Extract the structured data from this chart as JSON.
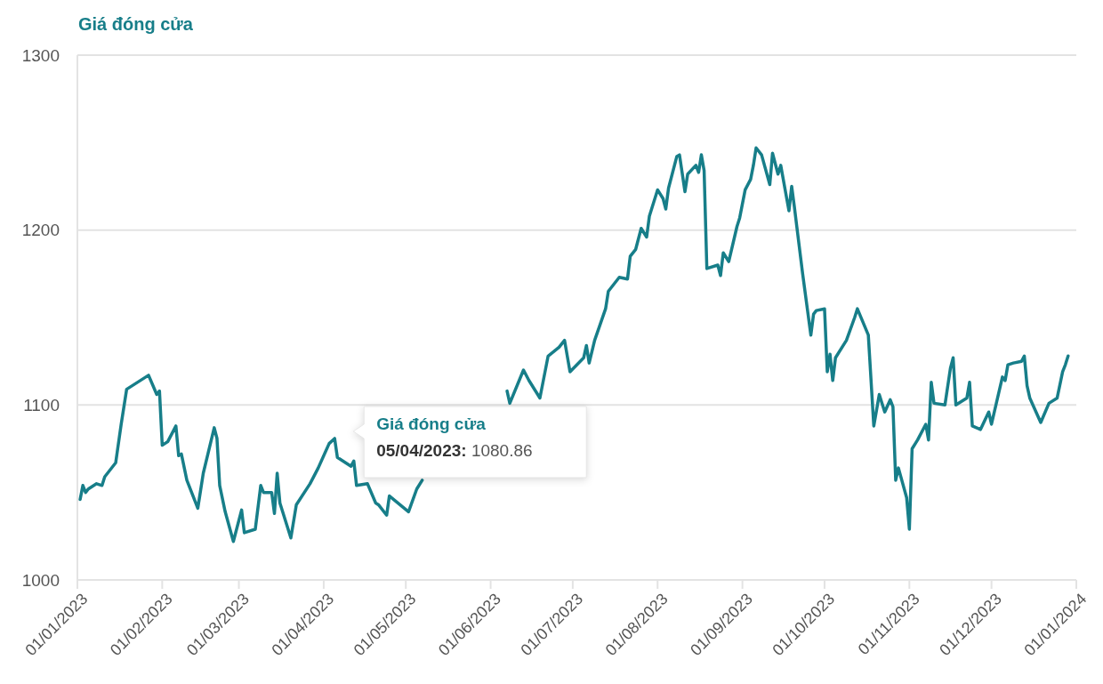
{
  "chart_data": {
    "type": "line",
    "title": "Giá đóng cửa",
    "color": "#177e89",
    "grid": "y",
    "line_style": "solid",
    "xlim": [
      "2023-01-01",
      "2024-01-01"
    ],
    "xticks": [
      {
        "value": "2023-01-01",
        "label": "01/01/2023"
      },
      {
        "value": "2023-02-01",
        "label": "01/02/2023"
      },
      {
        "value": "2023-03-01",
        "label": "01/03/2023"
      },
      {
        "value": "2023-04-01",
        "label": "01/04/2023"
      },
      {
        "value": "2023-05-01",
        "label": "01/05/2023"
      },
      {
        "value": "2023-06-01",
        "label": "01/06/2023"
      },
      {
        "value": "2023-07-01",
        "label": "01/07/2023"
      },
      {
        "value": "2023-08-01",
        "label": "01/08/2023"
      },
      {
        "value": "2023-09-01",
        "label": "01/09/2023"
      },
      {
        "value": "2023-10-01",
        "label": "01/10/2023"
      },
      {
        "value": "2023-11-01",
        "label": "01/11/2023"
      },
      {
        "value": "2023-12-01",
        "label": "01/12/2023"
      },
      {
        "value": "2024-01-01",
        "label": "01/01/2024"
      }
    ],
    "ylim": [
      1000,
      1300
    ],
    "yticks": [
      1000,
      1100,
      1200,
      1300
    ],
    "x": [
      "2023-01-02",
      "2023-01-03",
      "2023-01-04",
      "2023-01-05",
      "2023-01-08",
      "2023-01-10",
      "2023-01-11",
      "2023-01-15",
      "2023-01-17",
      "2023-01-19",
      "2023-01-27",
      "2023-01-30",
      "2023-01-31",
      "2023-02-01",
      "2023-02-03",
      "2023-02-06",
      "2023-02-07",
      "2023-02-08",
      "2023-02-10",
      "2023-02-14",
      "2023-02-16",
      "2023-02-20",
      "2023-02-21",
      "2023-02-22",
      "2023-02-24",
      "2023-02-27",
      "2023-03-02",
      "2023-03-03",
      "2023-03-07",
      "2023-03-09",
      "2023-03-10",
      "2023-03-13",
      "2023-03-14",
      "2023-03-15",
      "2023-03-16",
      "2023-03-20",
      "2023-03-22",
      "2023-03-27",
      "2023-03-30",
      "2023-04-03",
      "2023-04-05",
      "2023-04-06",
      "2023-04-11",
      "2023-04-12",
      "2023-04-13",
      "2023-04-17",
      "2023-04-20",
      "2023-04-21",
      "2023-04-24",
      "2023-04-25",
      "2023-05-02",
      "2023-05-05",
      "2023-05-07",
      "2023-05-20",
      "2023-06-07",
      "2023-06-08",
      "2023-06-13",
      "2023-06-15",
      "2023-06-19",
      "2023-06-22",
      "2023-06-26",
      "2023-06-28",
      "2023-06-30",
      "2023-07-05",
      "2023-07-06",
      "2023-07-07",
      "2023-07-09",
      "2023-07-13",
      "2023-07-14",
      "2023-07-18",
      "2023-07-21",
      "2023-07-22",
      "2023-07-24",
      "2023-07-26",
      "2023-07-28",
      "2023-07-29",
      "2023-08-01",
      "2023-08-03",
      "2023-08-04",
      "2023-08-05",
      "2023-08-08",
      "2023-08-09",
      "2023-08-11",
      "2023-08-12",
      "2023-08-15",
      "2023-08-16",
      "2023-08-17",
      "2023-08-18",
      "2023-08-19",
      "2023-08-23",
      "2023-08-24",
      "2023-08-25",
      "2023-08-27",
      "2023-08-30",
      "2023-08-31",
      "2023-09-02",
      "2023-09-04",
      "2023-09-05",
      "2023-09-06",
      "2023-09-08",
      "2023-09-11",
      "2023-09-12",
      "2023-09-14",
      "2023-09-15",
      "2023-09-18",
      "2023-09-19",
      "2023-09-20",
      "2023-09-23",
      "2023-09-26",
      "2023-09-27",
      "2023-09-28",
      "2023-10-01",
      "2023-10-02",
      "2023-10-03",
      "2023-10-04",
      "2023-10-05",
      "2023-10-09",
      "2023-10-12",
      "2023-10-13",
      "2023-10-17",
      "2023-10-19",
      "2023-10-21",
      "2023-10-23",
      "2023-10-25",
      "2023-10-26",
      "2023-10-27",
      "2023-10-28",
      "2023-10-31",
      "2023-11-01",
      "2023-11-02",
      "2023-11-04",
      "2023-11-07",
      "2023-11-08",
      "2023-11-09",
      "2023-11-10",
      "2023-11-14",
      "2023-11-16",
      "2023-11-17",
      "2023-11-18",
      "2023-11-22",
      "2023-11-23",
      "2023-11-24",
      "2023-11-27",
      "2023-11-30",
      "2023-12-01",
      "2023-12-05",
      "2023-12-06",
      "2023-12-07",
      "2023-12-09",
      "2023-12-12",
      "2023-12-13",
      "2023-12-14",
      "2023-12-15",
      "2023-12-19",
      "2023-12-22",
      "2023-12-25",
      "2023-12-27",
      "2023-12-28",
      "2023-12-29"
    ],
    "values": [
      1046,
      1054,
      1050,
      1052,
      1055,
      1054,
      1059,
      1067,
      1089,
      1109,
      1117,
      1106,
      1108,
      1077,
      1079,
      1088,
      1071,
      1072,
      1057,
      1041,
      1061,
      1087,
      1081,
      1054,
      1039,
      1022,
      1040,
      1027,
      1029,
      1054,
      1050,
      1050,
      1038,
      1061,
      1044,
      1024,
      1043,
      1055,
      1064,
      1078,
      1080.86,
      1070,
      1065,
      1068,
      1054,
      1055,
      1044,
      1043,
      1037,
      1048,
      1039,
      1052,
      1057,
      null,
      1108,
      1101,
      1120,
      1114,
      1104,
      1128,
      1133,
      1137,
      1119,
      1127,
      1134,
      1124,
      1137,
      1155,
      1165,
      1173,
      1172,
      1185,
      1189,
      1201,
      1196,
      1208,
      1223,
      1218,
      1212,
      1224,
      1242,
      1243,
      1222,
      1232,
      1237,
      1233,
      1243,
      1234,
      1178,
      1180,
      1174,
      1187,
      1182,
      1202,
      1207,
      1223,
      1229,
      1237,
      1247,
      1243,
      1226,
      1244,
      1232,
      1237,
      1211,
      1225,
      1213,
      1175,
      1140,
      1152,
      1154,
      1155,
      1119,
      1129,
      1114,
      1127,
      1137,
      1150,
      1155,
      1140,
      1088,
      1106,
      1096,
      1103,
      1099,
      1057,
      1064,
      1047,
      1029,
      1075,
      1080,
      1089,
      1080,
      1113,
      1101,
      1100,
      1121,
      1127,
      1100,
      1104,
      1113,
      1088,
      1086,
      1096,
      1089,
      1116,
      1114,
      1123,
      1124,
      1125,
      1128,
      1111,
      1104,
      1090,
      1101,
      1104,
      1119,
      1123,
      1128
    ],
    "annotations": [
      {
        "text": "Giá đóng cửa",
        "x": "2023-04-05",
        "y": 1080.86
      },
      {
        "text": "05/04/2023: 1080.86",
        "x": "2023-04-05",
        "y": 1080.86
      }
    ]
  }
}
